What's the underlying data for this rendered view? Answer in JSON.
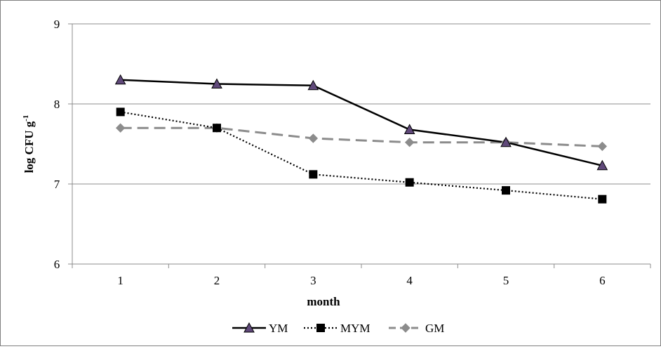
{
  "chart_data": {
    "type": "line",
    "xlabel": "month",
    "ylabel": "log CFU g",
    "ylabel_superscript": "-1",
    "x": [
      1,
      2,
      3,
      4,
      5,
      6
    ],
    "x_tick_labels": [
      "1",
      "2",
      "3",
      "4",
      "5",
      "6"
    ],
    "ylim": [
      6,
      9
    ],
    "y_ticks": [
      6,
      7,
      8,
      9
    ],
    "y_tick_labels": [
      "6",
      "7",
      "8",
      "9"
    ],
    "grid": "horizontal",
    "legend_position": "bottom",
    "series": [
      {
        "name": "YM",
        "values": [
          8.3,
          8.25,
          8.23,
          7.68,
          7.52,
          7.23
        ],
        "color": "#000000",
        "marker_color": "#60497a",
        "line_style": "solid",
        "marker": "triangle"
      },
      {
        "name": "MYM",
        "values": [
          7.9,
          7.7,
          7.12,
          7.02,
          6.92,
          6.81
        ],
        "color": "#000000",
        "marker_color": "#000000",
        "line_style": "dotted",
        "marker": "square"
      },
      {
        "name": "GM",
        "values": [
          7.7,
          7.7,
          7.57,
          7.52,
          7.52,
          7.47
        ],
        "color": "#8c8c8c",
        "marker_color": "#8c8c8c",
        "line_style": "dashed",
        "marker": "diamond"
      }
    ]
  }
}
